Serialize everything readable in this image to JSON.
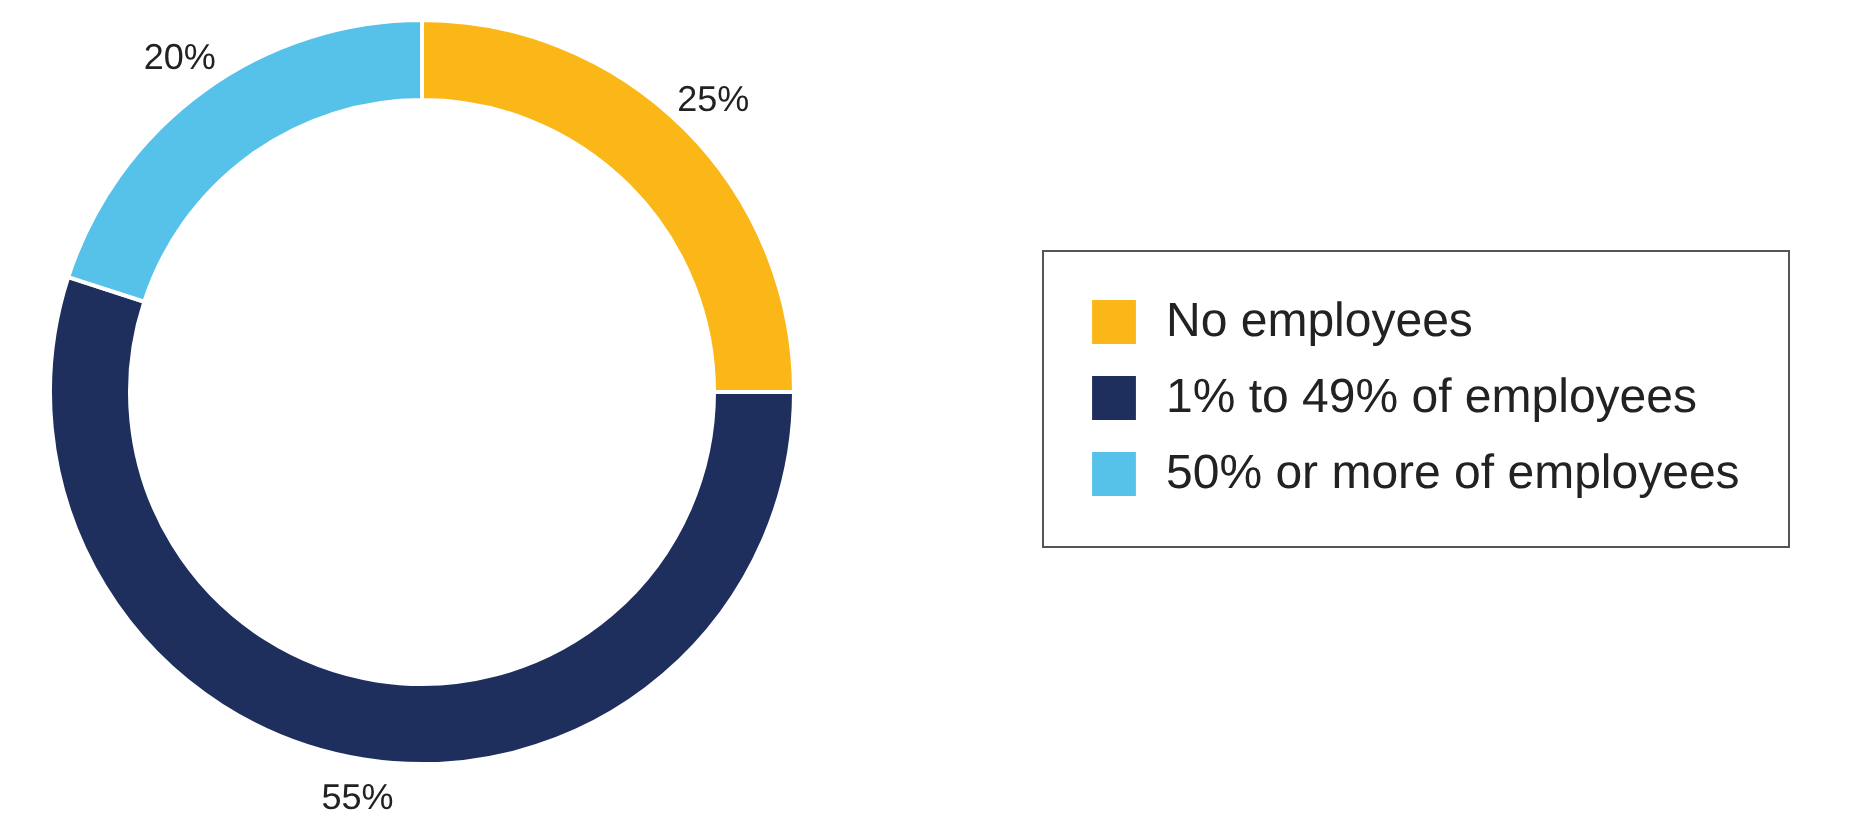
{
  "chart_data": {
    "type": "donut",
    "categories": [
      "No employees",
      "1% to 49% of employees",
      "50% or more of employees"
    ],
    "values": [
      25,
      55,
      20
    ],
    "colors": [
      "#fbb718",
      "#1e2f5e",
      "#56c2e9"
    ],
    "value_labels": [
      "25%",
      "55%",
      "20%"
    ],
    "legend": "right"
  }
}
